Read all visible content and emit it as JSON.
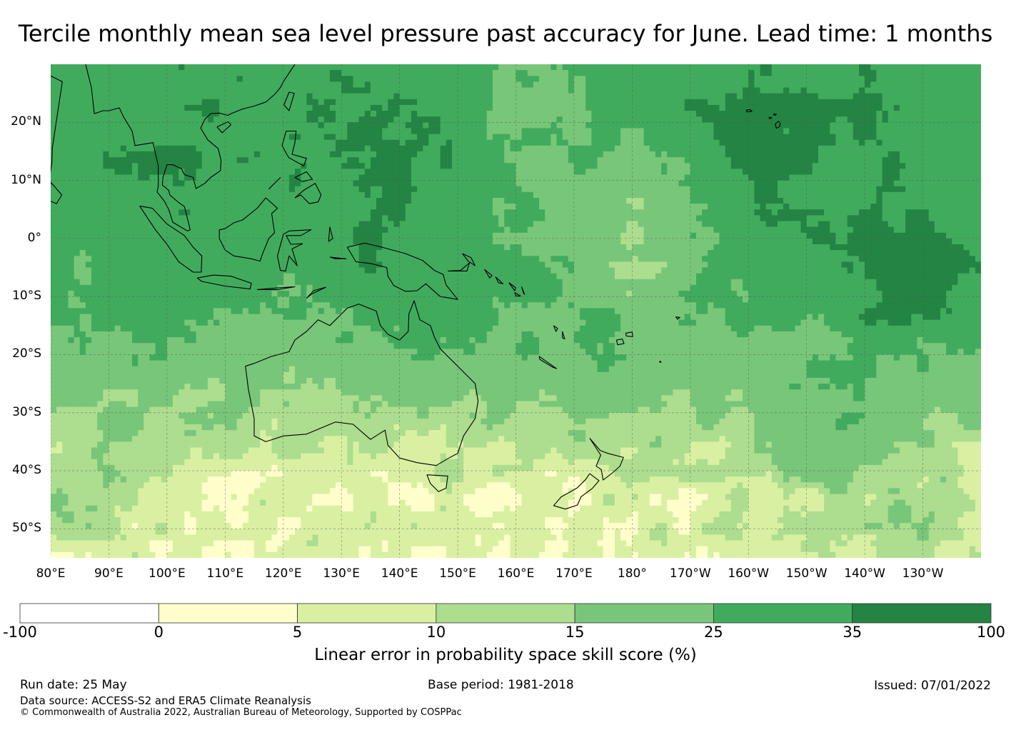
{
  "title": "Tercile monthly mean sea level pressure past accuracy for June. Lead time: 1 months",
  "map": {
    "lat_labels": [
      "20°N",
      "10°N",
      "0°",
      "10°S",
      "20°S",
      "30°S",
      "40°S",
      "50°S"
    ],
    "lat_values": [
      20,
      10,
      0,
      -10,
      -20,
      -30,
      -40,
      -50
    ],
    "lon_labels": [
      "80°E",
      "90°E",
      "100°E",
      "110°E",
      "120°E",
      "130°E",
      "140°E",
      "150°E",
      "160°E",
      "170°E",
      "180°",
      "170°W",
      "160°W",
      "150°W",
      "140°W",
      "130°W"
    ],
    "lon_values": [
      80,
      90,
      100,
      110,
      120,
      130,
      140,
      150,
      160,
      170,
      180,
      190,
      200,
      210,
      220,
      230
    ],
    "extent": {
      "lon_min": 80,
      "lon_max": 240,
      "lat_min": -55,
      "lat_max": 30
    },
    "gridlines": true,
    "coastlines": true
  },
  "colorbar": {
    "label": "Linear error in probability space skill score (%)",
    "ticks": [
      "-100",
      "0",
      "5",
      "10",
      "15",
      "25",
      "35",
      "100"
    ],
    "bins": [
      {
        "from": "-100",
        "to": "0",
        "color": "#ffffff"
      },
      {
        "from": "0",
        "to": "5",
        "color": "#ffffcc"
      },
      {
        "from": "5",
        "to": "10",
        "color": "#d9f0a3"
      },
      {
        "from": "10",
        "to": "15",
        "color": "#addd8e"
      },
      {
        "from": "15",
        "to": "25",
        "color": "#78c679"
      },
      {
        "from": "25",
        "to": "35",
        "color": "#41ab5d"
      },
      {
        "from": "35",
        "to": "100",
        "color": "#238443"
      }
    ]
  },
  "footer": {
    "run_date": "Run date: 25 May",
    "base_period": "Base period: 1981-2018",
    "issued": "Issued: 07/01/2022",
    "data_source": "Data source: ACCESS-S2 and ERA5 Climate Reanalysis",
    "copyright": "© Commonwealth of Australia 2022, Australian Bureau of Meteorology, Supported by COSPPac"
  }
}
